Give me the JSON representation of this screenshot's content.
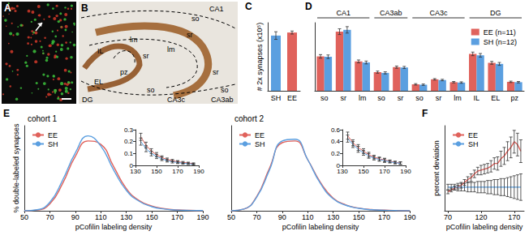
{
  "image_panels": [
    {
      "panel": "A"
    },
    {
      "panel": "B",
      "labels": [
        "CA1",
        "so",
        "sr",
        "lm",
        "lm",
        "IL",
        "sr",
        "pz",
        "EL",
        "DG",
        "so",
        "CA3c",
        "sr",
        "so",
        "CA3ab"
      ]
    }
  ],
  "chart_data": [
    {
      "panel": "C",
      "type": "bar",
      "ylabel": "# 2x synapses (x10⁵)",
      "categories": [
        "SH",
        "EE"
      ],
      "values": [
        73,
        77
      ],
      "errors": [
        5,
        2
      ],
      "colors": [
        "#5b9fe0",
        "#e0625c"
      ],
      "ylim": [
        0,
        90
      ],
      "yticks": [],
      "tick_labels": "x"
    },
    {
      "panel": "D",
      "type": "bar",
      "categories": [
        "so",
        "sr",
        "lm",
        "so",
        "sr",
        "so",
        "sr",
        "lm",
        "IL",
        "EL",
        "pz"
      ],
      "groups": [
        {
          "label": "CA1",
          "size": 3
        },
        {
          "label": "CA3ab",
          "size": 2
        },
        {
          "label": "CA3c",
          "size": 3
        },
        {
          "label": "DG",
          "size": 3
        }
      ],
      "series": [
        {
          "name": "EE (n=11)",
          "color": "#e0625c",
          "values": [
            9.6,
            16.5,
            8.2,
            5.2,
            6.6,
            1.8,
            3.2,
            2.4,
            10.3,
            7.8,
            2.5
          ],
          "errors": [
            0.5,
            0.8,
            0.4,
            0.3,
            0.3,
            0.2,
            0.2,
            0.2,
            0.5,
            0.4,
            0.2
          ]
        },
        {
          "name": "SH (n=12)",
          "color": "#5b9fe0",
          "values": [
            9.5,
            17.0,
            7.9,
            5.0,
            6.5,
            1.7,
            3.0,
            2.3,
            9.9,
            7.5,
            2.4
          ],
          "errors": [
            0.5,
            0.9,
            0.4,
            0.3,
            0.3,
            0.2,
            0.2,
            0.2,
            0.5,
            0.4,
            0.2
          ]
        }
      ],
      "ylim": [
        0,
        19
      ],
      "yticks": [],
      "tick_labels": "x",
      "legend": "upper right"
    },
    {
      "panel": "E",
      "type": "line",
      "title": "cohort 1",
      "xlabel": "pCofilin labeling density",
      "ylabel": "% double-labeled synapses",
      "line_style": "smooth",
      "x": [
        50,
        60,
        70,
        80,
        90,
        100,
        110,
        120,
        130,
        140,
        150,
        160,
        170,
        180,
        190
      ],
      "series": [
        {
          "name": "EE",
          "color": "#e0625c",
          "values": [
            0,
            0.2,
            2,
            8,
            16,
            20.5,
            19.5,
            13,
            6.5,
            3,
            1.4,
            0.6,
            0.25,
            0.12,
            0.07
          ]
        },
        {
          "name": "SH",
          "color": "#5b9fe0",
          "values": [
            0,
            0.3,
            2.5,
            9,
            17,
            22,
            19,
            12,
            6,
            2.8,
            1.2,
            0.5,
            0.2,
            0.1,
            0.05
          ]
        }
      ],
      "xlim": [
        50,
        190
      ],
      "xticks": [
        50,
        70,
        90,
        110,
        130,
        150,
        170,
        190
      ],
      "ylim": [
        0,
        25
      ],
      "yticks": [],
      "tick_labels": "x",
      "legend": "upper left"
    },
    {
      "type": "line",
      "x": [
        135,
        140,
        145,
        150,
        155,
        160,
        165,
        170,
        175,
        180,
        185
      ],
      "series": [
        {
          "color": "#e0625c",
          "values": [
            0.24,
            0.17,
            0.12,
            0.09,
            0.065,
            0.05,
            0.04,
            0.03,
            0.025,
            0.02,
            0.015
          ],
          "errors": [
            0.03,
            0.025,
            0.02,
            0.018,
            0.015,
            0.012,
            0.01,
            0.01,
            0.008,
            0.007,
            0.006
          ]
        },
        {
          "color": "#5b9fe0",
          "values": [
            0.2,
            0.14,
            0.1,
            0.075,
            0.055,
            0.04,
            0.03,
            0.025,
            0.018,
            0.014,
            0.01
          ],
          "errors": [
            0.03,
            0.025,
            0.02,
            0.018,
            0.015,
            0.012,
            0.01,
            0.01,
            0.008,
            0.007,
            0.006
          ]
        }
      ],
      "xlim": [
        130,
        190
      ],
      "xticks": [
        130,
        150,
        170,
        190
      ],
      "ylim": [
        0,
        0.3
      ],
      "yticks": [
        0,
        0.1,
        0.2,
        0.3
      ]
    },
    {
      "type": "line",
      "title": "cohort 2",
      "xlabel": "pCofilin labeling density",
      "line_style": "smooth",
      "x": [
        50,
        60,
        70,
        80,
        90,
        100,
        110,
        120,
        130,
        140,
        150,
        160,
        170,
        180,
        190
      ],
      "series": [
        {
          "name": "EE",
          "color": "#e0625c",
          "values": [
            0,
            0.5,
            4.2,
            12.5,
            20,
            20.5,
            15,
            8.3,
            3.7,
            1.7,
            0.8,
            0.35,
            0.17,
            0.08,
            0.04
          ]
        },
        {
          "name": "SH",
          "color": "#5b9fe0",
          "values": [
            0,
            0.5,
            4,
            12,
            20.5,
            21,
            15,
            8,
            3.5,
            1.6,
            0.7,
            0.3,
            0.15,
            0.07,
            0.03
          ]
        }
      ],
      "xlim": [
        50,
        190
      ],
      "xticks": [
        50,
        70,
        90,
        110,
        130,
        150,
        170,
        190
      ],
      "ylim": [
        0,
        25
      ],
      "yticks": [],
      "tick_labels": "x",
      "legend": "upper left"
    },
    {
      "type": "line",
      "x": [
        135,
        140,
        145,
        150,
        155,
        160,
        165,
        170,
        175,
        180,
        185
      ],
      "series": [
        {
          "color": "#e0625c",
          "values": [
            0.5,
            0.38,
            0.3,
            0.24,
            0.18,
            0.14,
            0.11,
            0.09,
            0.07,
            0.05,
            0.04
          ],
          "errors": [
            0.06,
            0.05,
            0.05,
            0.04,
            0.04,
            0.03,
            0.03,
            0.03,
            0.02,
            0.02,
            0.02
          ]
        },
        {
          "color": "#5b9fe0",
          "values": [
            0.45,
            0.35,
            0.27,
            0.21,
            0.16,
            0.12,
            0.1,
            0.08,
            0.06,
            0.045,
            0.035
          ],
          "errors": [
            0.06,
            0.05,
            0.05,
            0.04,
            0.04,
            0.03,
            0.03,
            0.03,
            0.02,
            0.02,
            0.02
          ]
        }
      ],
      "xlim": [
        130,
        190
      ],
      "xticks": [
        130,
        150,
        170,
        190
      ],
      "ylim": [
        0,
        0.6
      ],
      "yticks": [
        0,
        0.2,
        0.4,
        0.6
      ]
    },
    {
      "panel": "F",
      "type": "line",
      "xlabel": "pCofilin labeling density",
      "ylabel": "percent deviation",
      "x": [
        70,
        75,
        80,
        85,
        90,
        95,
        100,
        105,
        110,
        115,
        120,
        125,
        130,
        135,
        140,
        145,
        150,
        155,
        160,
        165,
        170,
        175,
        180
      ],
      "series": [
        {
          "name": "EE",
          "color": "#e0625c",
          "values": [
            -5,
            -3,
            -1,
            0,
            2,
            5,
            8,
            10,
            14,
            17,
            18,
            19,
            20,
            22,
            25,
            25,
            30,
            33,
            38,
            42,
            48,
            45,
            38
          ],
          "errors": [
            2,
            2,
            2,
            2,
            3,
            3,
            3,
            4,
            4,
            4,
            5,
            5,
            5,
            6,
            6,
            7,
            8,
            9,
            10,
            11,
            12,
            12,
            12
          ]
        },
        {
          "name": "SH",
          "color": "#5b9fe0",
          "values": [
            0,
            0,
            0,
            0,
            0,
            0,
            0,
            0,
            0,
            0,
            0,
            0,
            0,
            0,
            0,
            0,
            0,
            0,
            0,
            0,
            0,
            0,
            0
          ],
          "errors": [
            3,
            3,
            3,
            4,
            4,
            4,
            5,
            5,
            5,
            6,
            6,
            6,
            7,
            7,
            8,
            8,
            9,
            9,
            10,
            11,
            12,
            13,
            14
          ]
        }
      ],
      "xlim": [
        65,
        185
      ],
      "xticks": [
        70,
        120,
        170
      ],
      "ylim": [
        -25,
        65
      ],
      "yticks": [],
      "tick_labels": "x",
      "legend": "upper left"
    }
  ]
}
